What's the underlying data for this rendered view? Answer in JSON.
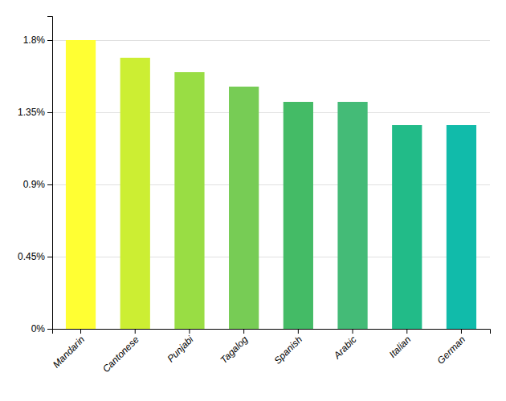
{
  "chart_data": {
    "type": "bar",
    "categories": [
      "Mandarin",
      "Cantonese",
      "Punjabi",
      "Tagalog",
      "Spanish",
      "Arabic",
      "Italian",
      "German"
    ],
    "values": [
      1.8,
      1.69,
      1.6,
      1.51,
      1.415,
      1.415,
      1.27,
      1.27
    ],
    "colors": [
      "#FFFF33",
      "#CCEE33",
      "#99DD44",
      "#77CC55",
      "#44BB66",
      "#44BB77",
      "#22BB88",
      "#11BBAA"
    ],
    "ylim": [
      0,
      1.95
    ],
    "yticks": [
      {
        "value": 0,
        "label": "0%"
      },
      {
        "value": 0.45,
        "label": "0.45%"
      },
      {
        "value": 0.9,
        "label": "0.9%"
      },
      {
        "value": 1.35,
        "label": "1.35%"
      },
      {
        "value": 1.8,
        "label": "1.8%"
      }
    ],
    "grid": true
  }
}
